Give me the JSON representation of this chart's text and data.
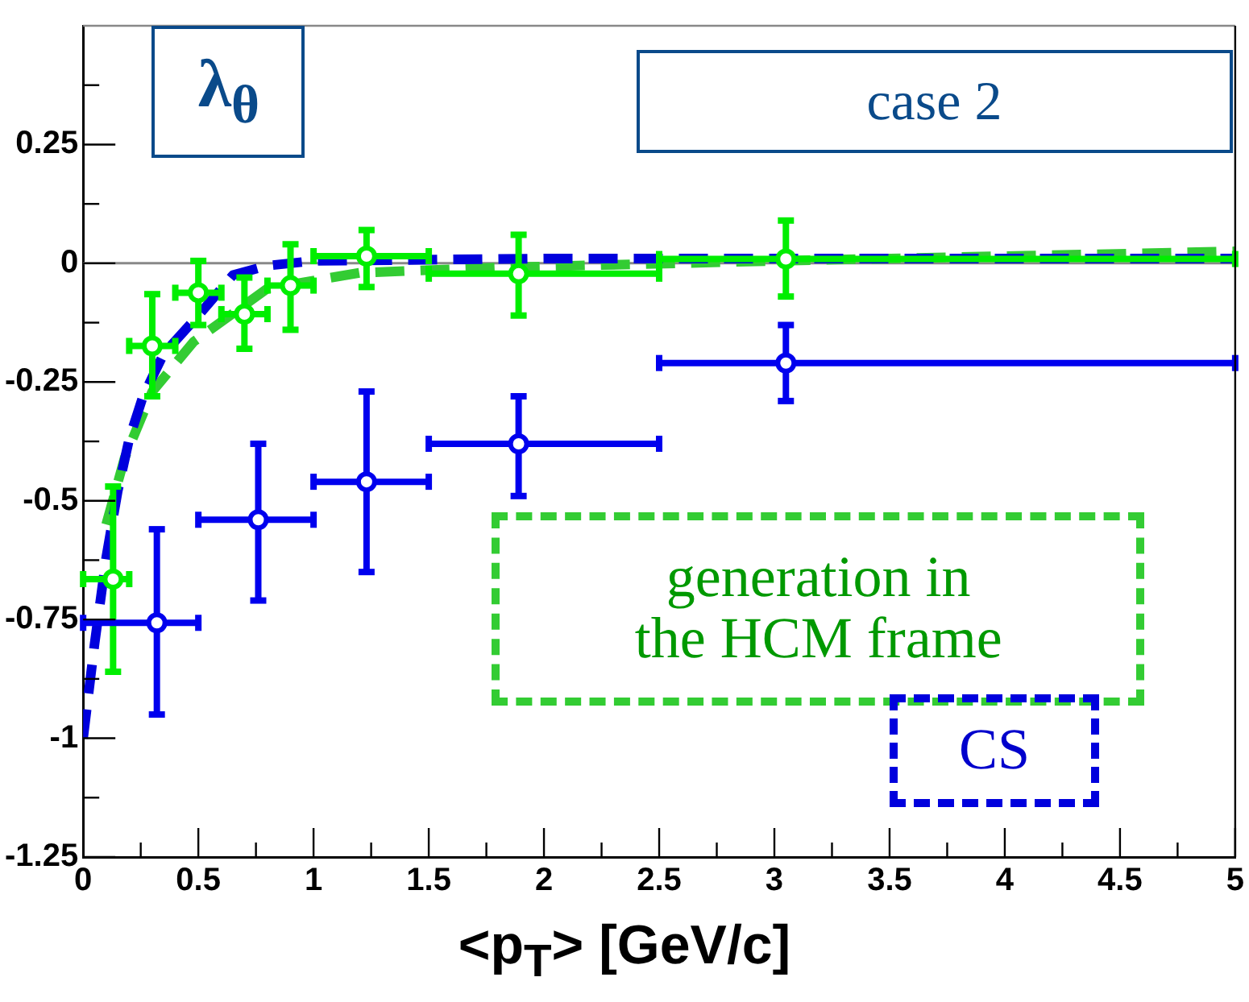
{
  "chart_data": {
    "type": "scatter",
    "xlabel": "<p$_{T}$> [GeV/c]",
    "xlim": [
      0,
      5
    ],
    "xticks": [
      0,
      {
        "value": 0.25,
        "label": null
      },
      0.5,
      {
        "value": 0.75,
        "label": null
      },
      1,
      {
        "value": 1.25,
        "label": null
      },
      1.5,
      {
        "value": 1.75,
        "label": null
      },
      2,
      {
        "value": 2.25,
        "label": null
      },
      2.5,
      {
        "value": 2.75,
        "label": null
      },
      3,
      {
        "value": 3.25,
        "label": null
      },
      3.5,
      {
        "value": 3.75,
        "label": null
      },
      4,
      {
        "value": 4.25,
        "label": null
      },
      4.5,
      {
        "value": 4.75,
        "label": null
      },
      5
    ],
    "ylim": [
      -1.25,
      0.5
    ],
    "yticks": [
      -1.25,
      {
        "value": -1.125,
        "label": null
      },
      -1,
      {
        "value": -0.875,
        "label": null
      },
      -0.75,
      {
        "value": -0.625,
        "label": null
      },
      -0.5,
      {
        "value": -0.375,
        "label": null
      },
      -0.25,
      {
        "value": -0.125,
        "label": null
      },
      0,
      {
        "value": 0.125,
        "label": null
      },
      0.25,
      {
        "value": 0.375,
        "label": null
      }
    ],
    "grid": false,
    "legend": false,
    "ref_lines": [
      {
        "axis": "y",
        "value": 0,
        "color": "#888888"
      }
    ],
    "annotations": [
      "λ$_{θ}$",
      "case 2",
      "generation in the HCM frame",
      "CS"
    ],
    "series": [
      {
        "type": "line",
        "color": "#0000dd",
        "line_style": "dashed",
        "marker": "none",
        "x": [
          0,
          0.05,
          0.1,
          0.15,
          0.2,
          0.26,
          0.35,
          0.5,
          0.65,
          0.8,
          1,
          2,
          5
        ],
        "values": [
          -1.0,
          -0.8,
          -0.62,
          -0.48,
          -0.37,
          -0.28,
          -0.19,
          -0.11,
          -0.025,
          -0.005,
          0.005,
          0.01,
          0.01
        ]
      },
      {
        "type": "line",
        "color": "#33cc33",
        "line_style": "dashed",
        "marker": "none",
        "x": [
          0.1,
          0.18,
          0.3,
          0.48,
          0.8,
          1.2,
          1.8,
          3,
          5
        ],
        "values": [
          -0.55,
          -0.41,
          -0.27,
          -0.165,
          -0.053,
          -0.02,
          -0.009,
          0.005,
          0.025
        ]
      },
      {
        "type": "scatter",
        "color": "#0000ee",
        "marker": "circle",
        "x": [
          0.32,
          0.76,
          1.23,
          1.89,
          3.05
        ],
        "values": [
          -0.757,
          -0.54,
          -0.46,
          -0.38,
          -0.21
        ],
        "errors": [
          [
            -0.95,
            -0.56
          ],
          [
            -0.71,
            -0.38
          ],
          [
            -0.65,
            -0.27
          ],
          [
            -0.49,
            -0.28
          ],
          [
            -0.29,
            -0.13
          ]
        ],
        "xerrors": [
          [
            0,
            0.5
          ],
          [
            0.5,
            1
          ],
          [
            1,
            1.5
          ],
          [
            1.5,
            2.5
          ],
          [
            2.5,
            5
          ]
        ]
      },
      {
        "type": "scatter",
        "color": "#00ee00",
        "marker": "circle",
        "x": [
          0.13,
          0.3,
          0.5,
          0.7,
          0.9,
          1.23,
          1.89,
          3.05
        ],
        "values": [
          -0.665,
          -0.174,
          -0.062,
          -0.107,
          -0.047,
          0.015,
          -0.022,
          0.009
        ],
        "errors": [
          [
            -0.86,
            -0.47
          ],
          [
            -0.28,
            -0.065
          ],
          [
            -0.13,
            0.005
          ],
          [
            -0.18,
            -0.03
          ],
          [
            -0.14,
            0.04
          ],
          [
            -0.05,
            0.07
          ],
          [
            -0.11,
            0.06
          ],
          [
            -0.07,
            0.09
          ]
        ],
        "xerrors": [
          [
            0,
            0.2
          ],
          [
            0.2,
            0.4
          ],
          [
            0.4,
            0.6
          ],
          [
            0.6,
            0.8
          ],
          [
            0.8,
            1
          ],
          [
            1,
            1.5
          ],
          [
            1.5,
            2.5
          ],
          [
            2.5,
            5
          ]
        ]
      }
    ]
  }
}
